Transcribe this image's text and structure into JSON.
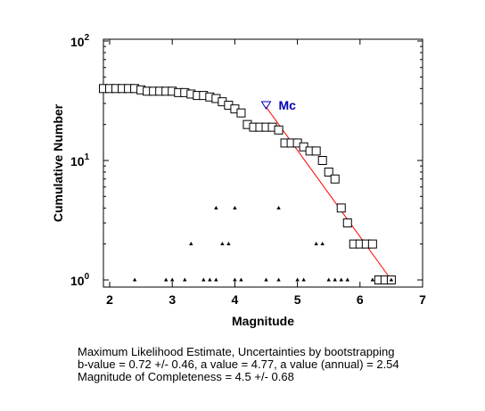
{
  "chart_data": {
    "type": "scatter",
    "xlabel": "Magnitude",
    "ylabel": "Cumulative Number",
    "xlim": [
      1.9,
      7.0
    ],
    "ylim": [
      1,
      100
    ],
    "yscale": "log",
    "x_ticks": [
      "2",
      "3",
      "4",
      "5",
      "6",
      "7"
    ],
    "x_tick_values": [
      2,
      3,
      4,
      5,
      6,
      7
    ],
    "y_ticks": [
      {
        "value": 1,
        "base": "10",
        "exp": "0"
      },
      {
        "value": 10,
        "base": "10",
        "exp": "1"
      },
      {
        "value": 100,
        "base": "10",
        "exp": "2"
      }
    ],
    "grid": false,
    "series": [
      {
        "marker": "square",
        "color": "#000000",
        "x": [
          1.9,
          2.0,
          2.1,
          2.2,
          2.3,
          2.4,
          2.5,
          2.6,
          2.7,
          2.8,
          2.9,
          3.0,
          3.1,
          3.2,
          3.3,
          3.4,
          3.5,
          3.6,
          3.7,
          3.8,
          3.9,
          4.0,
          4.1,
          4.2,
          4.3,
          4.4,
          4.5,
          4.6,
          4.7,
          4.8,
          4.9,
          5.0,
          5.1,
          5.2,
          5.3,
          5.4,
          5.5,
          5.6,
          5.7,
          5.8,
          5.9,
          6.0,
          6.1,
          6.2,
          6.3,
          6.4,
          6.5
        ],
        "y": [
          40,
          40,
          40,
          40,
          40,
          40,
          39,
          38,
          38,
          38,
          38,
          38,
          37,
          37,
          36,
          35,
          35,
          34,
          33,
          31,
          29,
          27,
          25,
          20,
          19,
          19,
          19,
          19,
          18,
          14,
          14,
          14,
          13,
          12,
          12,
          10,
          8,
          7,
          4,
          3,
          2,
          2,
          2,
          2,
          1,
          1,
          1
        ]
      },
      {
        "marker": "triangle",
        "color": "#000000",
        "x": [
          2.4,
          2.9,
          3.0,
          3.2,
          3.3,
          3.5,
          3.6,
          3.7,
          3.7,
          3.8,
          3.9,
          4.0,
          4.0,
          4.1,
          4.5,
          4.7,
          4.7,
          5.0,
          5.1,
          5.3,
          5.4,
          5.5,
          5.6,
          5.7,
          5.8,
          6.2,
          6.5
        ],
        "y": [
          1,
          1,
          1,
          1,
          2,
          1,
          1,
          1,
          4,
          2,
          2,
          1,
          4,
          1,
          1,
          1,
          4,
          1,
          1,
          2,
          2,
          1,
          1,
          1,
          1,
          1,
          1
        ]
      }
    ],
    "fit_line": {
      "color": "#ff0000",
      "x": [
        4.5,
        6.5
      ],
      "y": [
        28,
        1
      ]
    },
    "mc_marker": {
      "x": 4.5,
      "y": 29,
      "label": "Mc",
      "color": "#0000b0"
    }
  },
  "caption": {
    "line1": "Maximum Likelihood Estimate, Uncertainties by bootstrapping",
    "line2": "b-value = 0.72 +/- 0.46,  a value = 4.77,  a value (annual) = 2.54",
    "line3": "Magnitude of Completeness = 4.5 +/- 0.68"
  }
}
